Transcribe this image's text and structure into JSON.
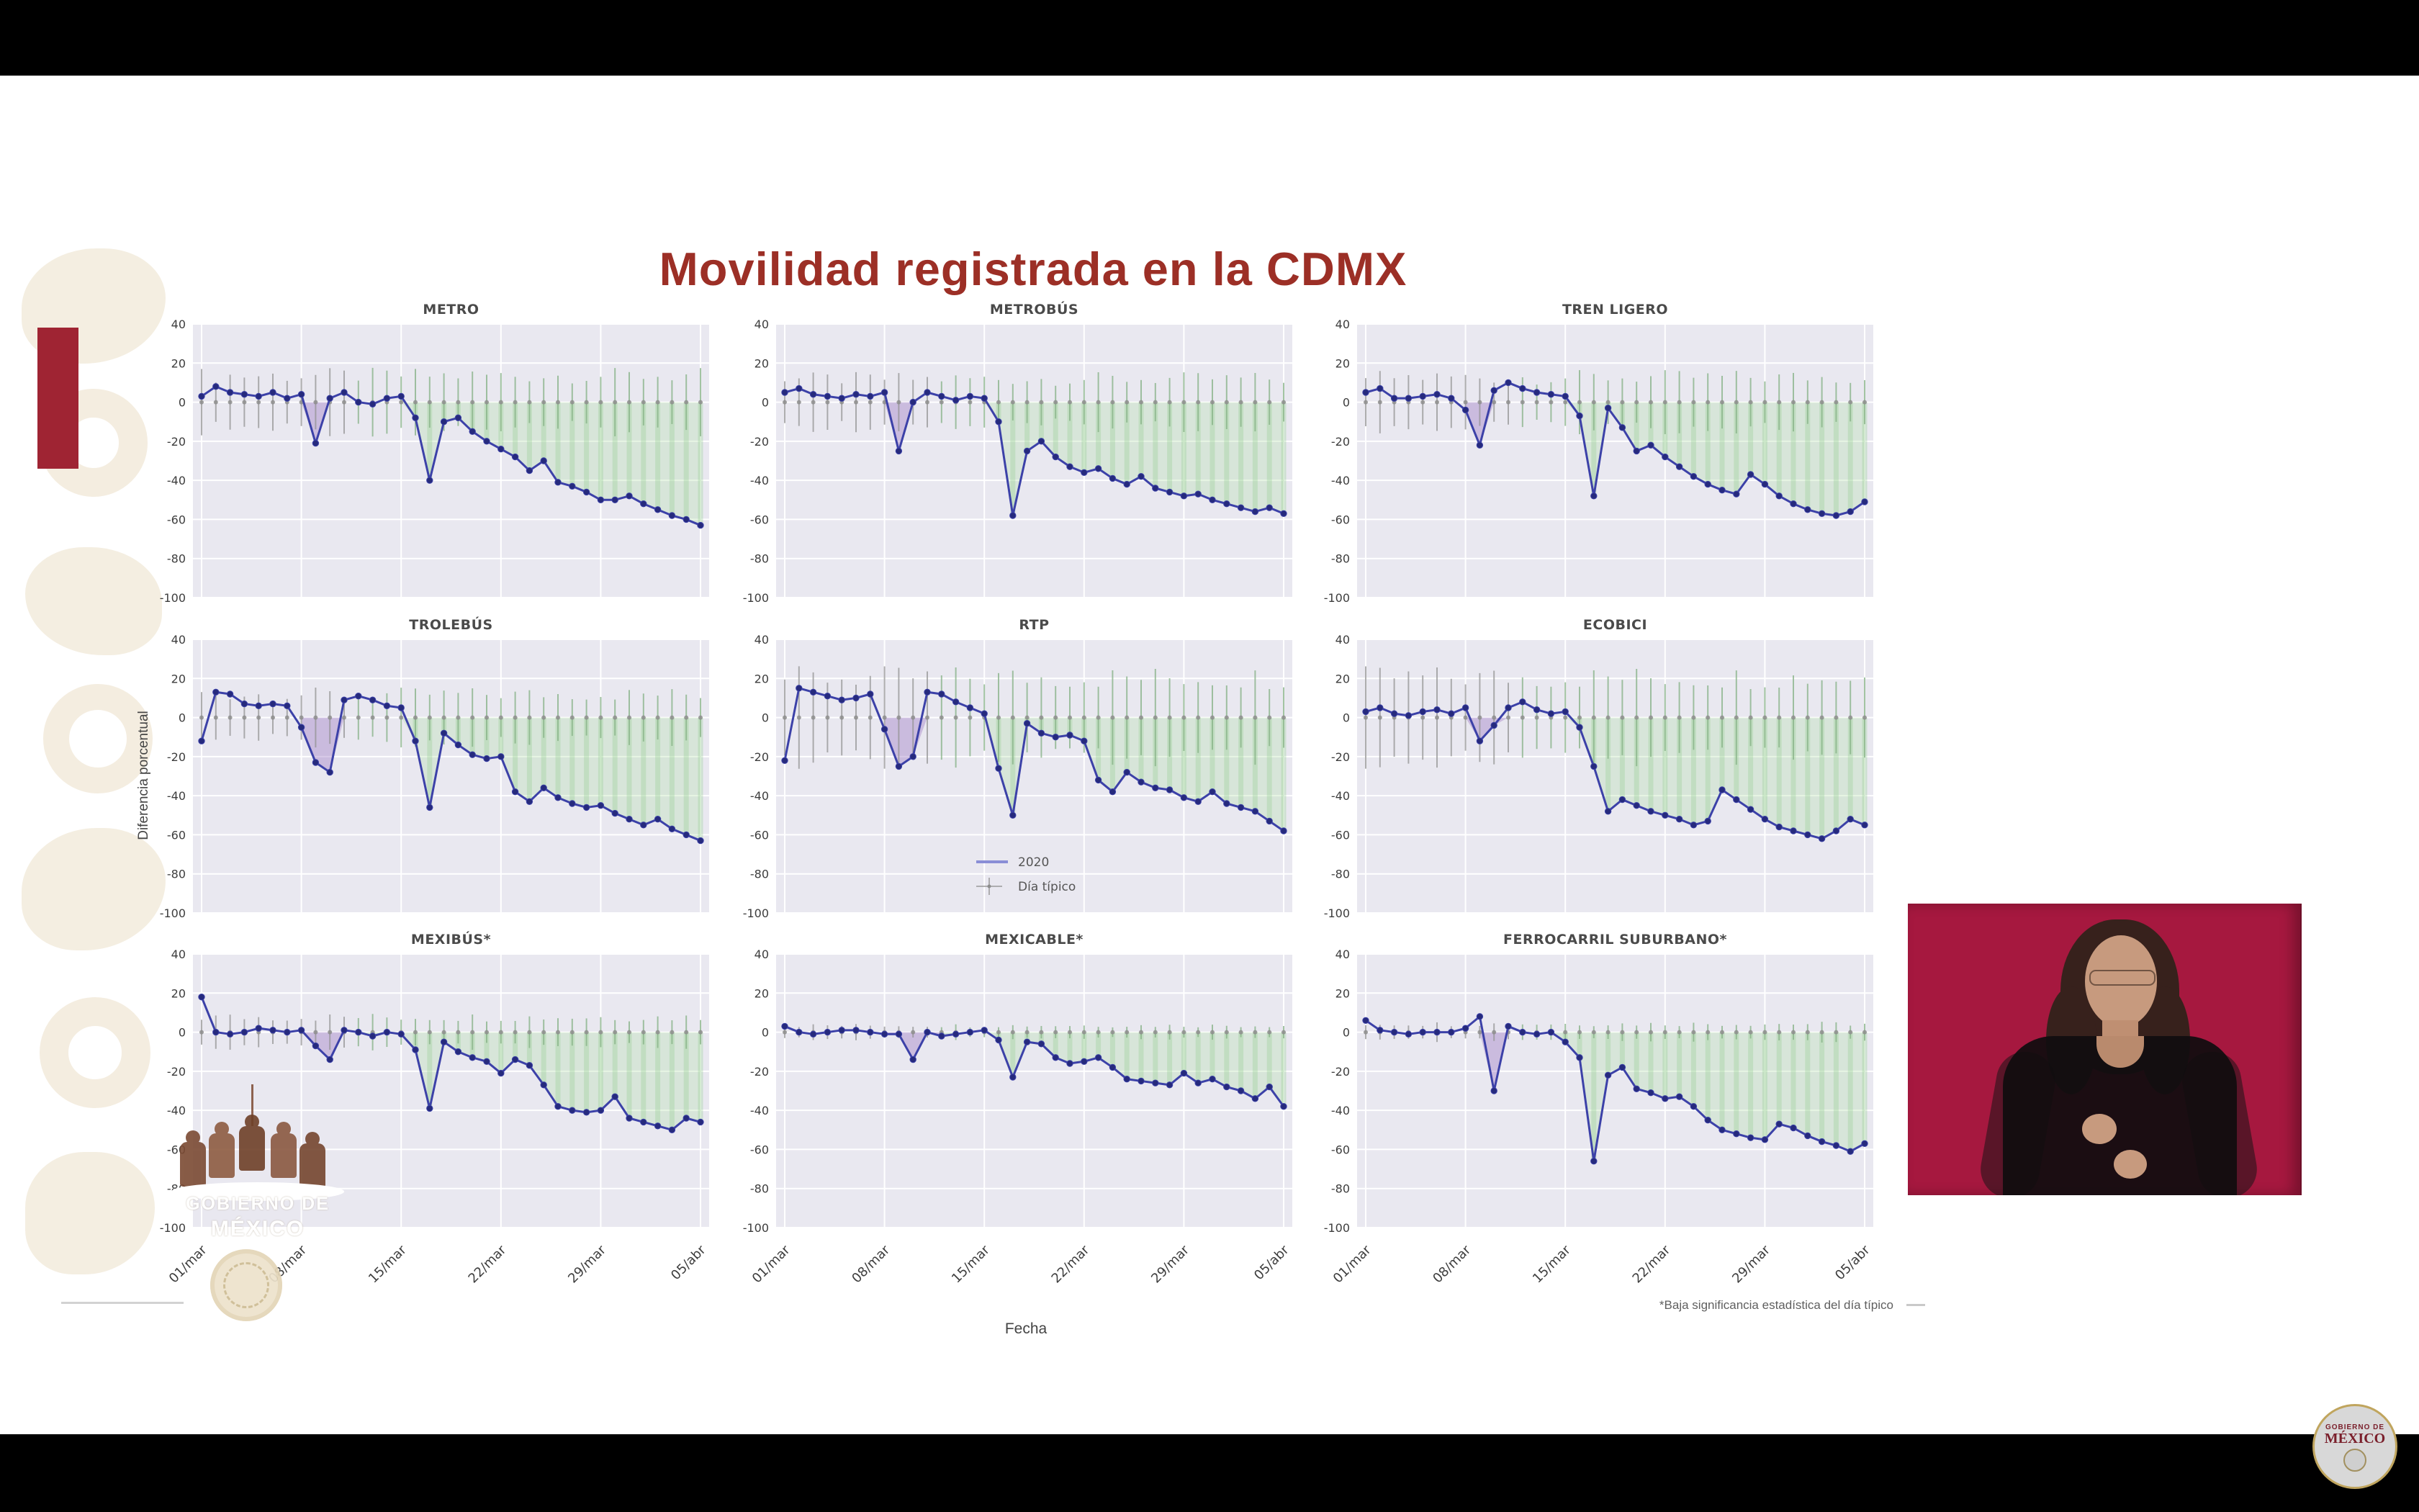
{
  "chart_data": {
    "type": "line",
    "title": "Movilidad registrada en la CDMX",
    "xlabel": "Fecha",
    "ylabel": "Diferencia porcentual",
    "footnote": "*Baja significancia estadística del día típico",
    "ylim": [
      -100,
      40
    ],
    "yticks": [
      40,
      20,
      0,
      -20,
      -40,
      -60,
      -80,
      -100
    ],
    "x_tick_labels": [
      "01/mar",
      "08/mar",
      "15/mar",
      "22/mar",
      "29/mar",
      "05/abr"
    ],
    "x_tick_indices": [
      0,
      7,
      14,
      21,
      28,
      35
    ],
    "n_points_per_series": 36,
    "grid": true,
    "legend": [
      "2020",
      "Día típico"
    ],
    "legend_position": "inside RTP subplot, bottom center",
    "reference_series": {
      "name": "Día típico",
      "value": 0,
      "note": "gray cross markers at 0% with vertical error bars; shaded green where 2020 is significantly below"
    },
    "subplots": [
      {
        "title": "METRO",
        "errorbar_halfwidth": 16,
        "values": [
          3,
          8,
          5,
          4,
          3,
          5,
          2,
          4,
          -21,
          2,
          5,
          0,
          -1,
          2,
          3,
          -8,
          -40,
          -10,
          -8,
          -15,
          -20,
          -24,
          -28,
          -35,
          -30,
          -41,
          -43,
          -46,
          -50,
          -50,
          -48,
          -52,
          -55,
          -58,
          -60,
          -63
        ]
      },
      {
        "title": "METROBÚS",
        "errorbar_halfwidth": 14,
        "values": [
          5,
          7,
          4,
          3,
          2,
          4,
          3,
          5,
          -25,
          0,
          5,
          3,
          1,
          3,
          2,
          -10,
          -58,
          -25,
          -20,
          -28,
          -33,
          -36,
          -34,
          -39,
          -42,
          -38,
          -44,
          -46,
          -48,
          -47,
          -50,
          -52,
          -54,
          -56,
          -54,
          -57
        ]
      },
      {
        "title": "TREN LIGERO",
        "errorbar_halfwidth": 15,
        "values": [
          5,
          7,
          2,
          2,
          3,
          4,
          2,
          -4,
          -22,
          6,
          10,
          7,
          5,
          4,
          3,
          -7,
          -48,
          -3,
          -13,
          -25,
          -22,
          -28,
          -33,
          -38,
          -42,
          -45,
          -47,
          -37,
          -42,
          -48,
          -52,
          -55,
          -57,
          -58,
          -56,
          -51
        ]
      },
      {
        "title": "TROLEBÚS",
        "errorbar_halfwidth": 14,
        "values": [
          -12,
          13,
          12,
          7,
          6,
          7,
          6,
          -5,
          -23,
          -28,
          9,
          11,
          9,
          6,
          5,
          -12,
          -46,
          -8,
          -14,
          -19,
          -21,
          -20,
          -38,
          -43,
          -36,
          -41,
          -44,
          -46,
          -45,
          -49,
          -52,
          -55,
          -52,
          -57,
          -60,
          -63
        ]
      },
      {
        "title": "RTP",
        "errorbar_halfwidth": 24,
        "values": [
          -22,
          15,
          13,
          11,
          9,
          10,
          12,
          -6,
          -25,
          -20,
          13,
          12,
          8,
          5,
          2,
          -26,
          -50,
          -3,
          -8,
          -10,
          -9,
          -12,
          -32,
          -38,
          -28,
          -33,
          -36,
          -37,
          -41,
          -43,
          -38,
          -44,
          -46,
          -48,
          -53,
          -58
        ]
      },
      {
        "title": "ECOBICI",
        "errorbar_halfwidth": 24,
        "values": [
          3,
          5,
          2,
          1,
          3,
          4,
          2,
          5,
          -12,
          -4,
          5,
          8,
          4,
          2,
          3,
          -5,
          -25,
          -48,
          -42,
          -45,
          -48,
          -50,
          -52,
          -55,
          -53,
          -37,
          -42,
          -47,
          -52,
          -56,
          -58,
          -60,
          -62,
          -58,
          -52,
          -55
        ]
      },
      {
        "title": "MEXIBÚS*",
        "errorbar_halfwidth": 9,
        "values": [
          18,
          0,
          -1,
          0,
          2,
          1,
          0,
          1,
          -7,
          -14,
          1,
          0,
          -2,
          0,
          -1,
          -9,
          -39,
          -5,
          -10,
          -13,
          -15,
          -21,
          -14,
          -17,
          -27,
          -38,
          -40,
          -41,
          -40,
          -33,
          -44,
          -46,
          -48,
          -50,
          -44,
          -46
        ]
      },
      {
        "title": "MEXICABLE*",
        "errorbar_halfwidth": 4,
        "values": [
          3,
          0,
          -1,
          0,
          1,
          1,
          0,
          -1,
          -1,
          -14,
          0,
          -2,
          -1,
          0,
          1,
          -4,
          -23,
          -5,
          -6,
          -13,
          -16,
          -15,
          -13,
          -18,
          -24,
          -25,
          -26,
          -27,
          -21,
          -26,
          -24,
          -28,
          -30,
          -34,
          -28,
          -38
        ]
      },
      {
        "title": "FERROCARRIL SUBURBANO*",
        "errorbar_halfwidth": 5,
        "values": [
          6,
          1,
          0,
          -1,
          0,
          0,
          0,
          2,
          8,
          -30,
          3,
          0,
          -1,
          0,
          -5,
          -13,
          -66,
          -22,
          -18,
          -29,
          -31,
          -34,
          -33,
          -38,
          -45,
          -50,
          -52,
          -54,
          -55,
          -47,
          -49,
          -53,
          -56,
          -58,
          -61,
          -57
        ]
      }
    ]
  },
  "colors": {
    "title_red": "#9c2f26",
    "sidebar_red": "#9f2433",
    "interpreter_background": "#a6183f",
    "line_2020": "#3c41a8",
    "marker_2020": "#262a7d",
    "green_significant_fill": "#aedfa4",
    "purple_dip_fill": "#9b79c4",
    "plot_background": "#e9e8f0",
    "errorbar_gray": "#949494"
  },
  "logos": {
    "watermark": {
      "line1": "GOBIERNO DE",
      "line2": "MÉXICO"
    },
    "badge": {
      "line1": "GOBIERNO DE",
      "line2": "MÉXICO"
    }
  }
}
